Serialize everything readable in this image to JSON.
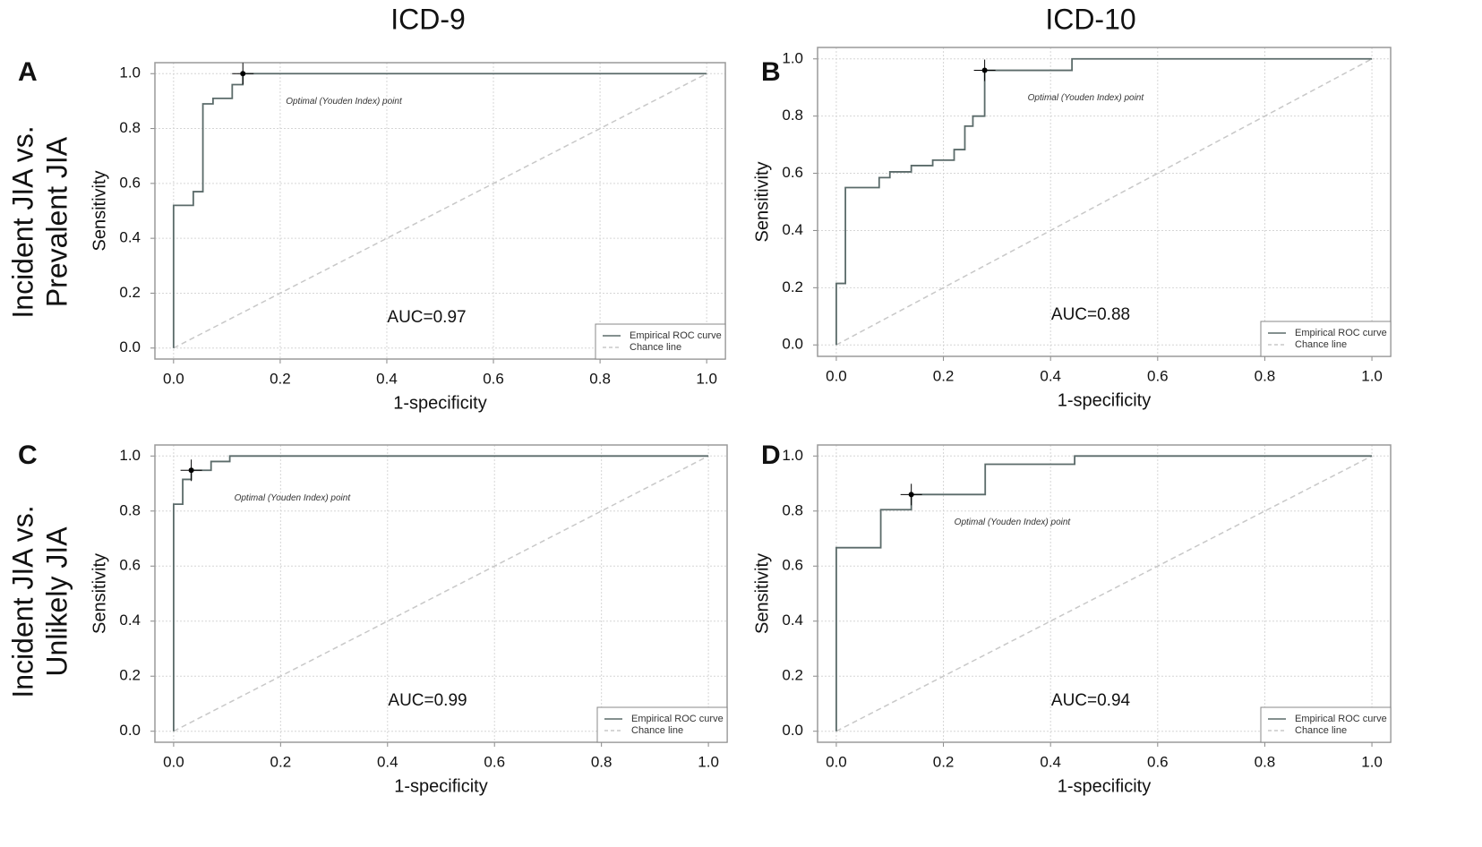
{
  "figure": {
    "column_titles": [
      "ICD-9",
      "ICD-10"
    ],
    "row_titles": [
      [
        "Incident JIA vs.",
        "Prevalent JIA"
      ],
      [
        "Incident JIA vs.",
        "Unlikely JIA"
      ]
    ]
  },
  "chart_data": [
    {
      "type": "line",
      "panel": "A",
      "x_label": "1-specificity",
      "y_label": "Sensitivity",
      "annotation": "AUC=0.97",
      "xlim": [
        -0.035,
        1.035
      ],
      "ylim": [
        -0.04,
        1.04
      ],
      "xticks": [
        {
          "value": 0,
          "label": "0.0"
        },
        0.2,
        0.4,
        0.6,
        0.8,
        {
          "value": 1,
          "label": "1.0"
        }
      ],
      "yticks": [
        {
          "value": 0,
          "label": "0.0"
        },
        0.2,
        0.4,
        0.6,
        0.8,
        {
          "value": 1,
          "label": "1.0"
        }
      ],
      "grid": true,
      "legend": "lower right",
      "optimal_point": {
        "x": 0.13,
        "y": 1.0,
        "label": "Optimal (Youden Index) point",
        "color": "#000000"
      },
      "series": [
        {
          "name": "Empirical ROC curve",
          "color": "#5b6b6a",
          "x": [
            0,
            0,
            0.037,
            0.037,
            0.055,
            0.055,
            0.074,
            0.074,
            0.11,
            0.11,
            0.13,
            0.13,
            1
          ],
          "values": [
            0,
            0.52,
            0.52,
            0.57,
            0.57,
            0.89,
            0.89,
            0.91,
            0.91,
            0.96,
            0.96,
            1,
            1
          ]
        },
        {
          "name": "Chance line",
          "color": "#c8c8c8",
          "dashed": true,
          "x": [
            0,
            1
          ],
          "values": [
            0,
            1
          ]
        }
      ]
    },
    {
      "type": "line",
      "panel": "B",
      "x_label": "1-specificity",
      "y_label": "Sensitivity",
      "annotation": "AUC=0.88",
      "xlim": [
        -0.035,
        1.035
      ],
      "ylim": [
        -0.04,
        1.04
      ],
      "xticks": [
        {
          "value": 0,
          "label": "0.0"
        },
        0.2,
        0.4,
        0.6,
        0.8,
        {
          "value": 1,
          "label": "1.0"
        }
      ],
      "yticks": [
        {
          "value": 0,
          "label": "0.0"
        },
        0.2,
        0.4,
        0.6,
        0.8,
        {
          "value": 1,
          "label": "1.0"
        }
      ],
      "grid": true,
      "legend": "lower right",
      "optimal_point": {
        "x": 0.277,
        "y": 0.96,
        "label": "Optimal (Youden Index) point",
        "color": "#000000"
      },
      "series": [
        {
          "name": "Empirical ROC curve",
          "color": "#5b6b6a",
          "x": [
            0,
            0,
            0.017,
            0.017,
            0.08,
            0.08,
            0.1,
            0.1,
            0.14,
            0.14,
            0.18,
            0.18,
            0.22,
            0.22,
            0.24,
            0.24,
            0.255,
            0.255,
            0.277,
            0.277,
            0.44,
            0.44,
            1
          ],
          "values": [
            0,
            0.215,
            0.215,
            0.55,
            0.55,
            0.585,
            0.585,
            0.605,
            0.605,
            0.627,
            0.627,
            0.646,
            0.646,
            0.683,
            0.683,
            0.765,
            0.765,
            0.8,
            0.8,
            0.96,
            0.96,
            1,
            1
          ]
        },
        {
          "name": "Chance line",
          "color": "#c8c8c8",
          "dashed": true,
          "x": [
            0,
            1
          ],
          "values": [
            0,
            1
          ]
        }
      ]
    },
    {
      "type": "line",
      "panel": "C",
      "x_label": "1-specificity",
      "y_label": "Sensitivity",
      "annotation": "AUC=0.99",
      "xlim": [
        -0.035,
        1.035
      ],
      "ylim": [
        -0.04,
        1.04
      ],
      "xticks": [
        {
          "value": 0,
          "label": "0.0"
        },
        0.2,
        0.4,
        0.6,
        0.8,
        {
          "value": 1,
          "label": "1.0"
        }
      ],
      "yticks": [
        {
          "value": 0,
          "label": "0.0"
        },
        0.2,
        0.4,
        0.6,
        0.8,
        {
          "value": 1,
          "label": "1.0"
        }
      ],
      "grid": true,
      "legend": "lower right",
      "optimal_point": {
        "x": 0.033,
        "y": 0.948,
        "label": "Optimal (Youden Index) point",
        "color": "#000000"
      },
      "series": [
        {
          "name": "Empirical ROC curve",
          "color": "#5b6b6a",
          "x": [
            0,
            0,
            0.017,
            0.017,
            0.033,
            0.033,
            0.07,
            0.07,
            0.105,
            0.105,
            1
          ],
          "values": [
            0,
            0.825,
            0.825,
            0.915,
            0.915,
            0.948,
            0.948,
            0.98,
            0.98,
            1,
            1
          ]
        },
        {
          "name": "Chance line",
          "color": "#c8c8c8",
          "dashed": true,
          "x": [
            0,
            1
          ],
          "values": [
            0,
            1
          ]
        }
      ]
    },
    {
      "type": "line",
      "panel": "D",
      "x_label": "1-specificity",
      "y_label": "Sensitivity",
      "annotation": "AUC=0.94",
      "xlim": [
        -0.035,
        1.035
      ],
      "ylim": [
        -0.04,
        1.04
      ],
      "xticks": [
        {
          "value": 0,
          "label": "0.0"
        },
        0.2,
        0.4,
        0.6,
        0.8,
        {
          "value": 1,
          "label": "1.0"
        }
      ],
      "yticks": [
        {
          "value": 0,
          "label": "0.0"
        },
        0.2,
        0.4,
        0.6,
        0.8,
        {
          "value": 1,
          "label": "1.0"
        }
      ],
      "grid": true,
      "legend": "lower right",
      "optimal_point": {
        "x": 0.14,
        "y": 0.86,
        "label": "Optimal (Youden Index) point",
        "color": "#000000"
      },
      "series": [
        {
          "name": "Empirical ROC curve",
          "color": "#5b6b6a",
          "x": [
            0,
            0,
            0.083,
            0.083,
            0.14,
            0.14,
            0.278,
            0.278,
            0.445,
            0.445,
            1
          ],
          "values": [
            0,
            0.667,
            0.667,
            0.805,
            0.805,
            0.86,
            0.86,
            0.97,
            0.97,
            1,
            1
          ]
        },
        {
          "name": "Chance line",
          "color": "#c8c8c8",
          "dashed": true,
          "x": [
            0,
            1
          ],
          "values": [
            0,
            1
          ]
        }
      ]
    }
  ]
}
